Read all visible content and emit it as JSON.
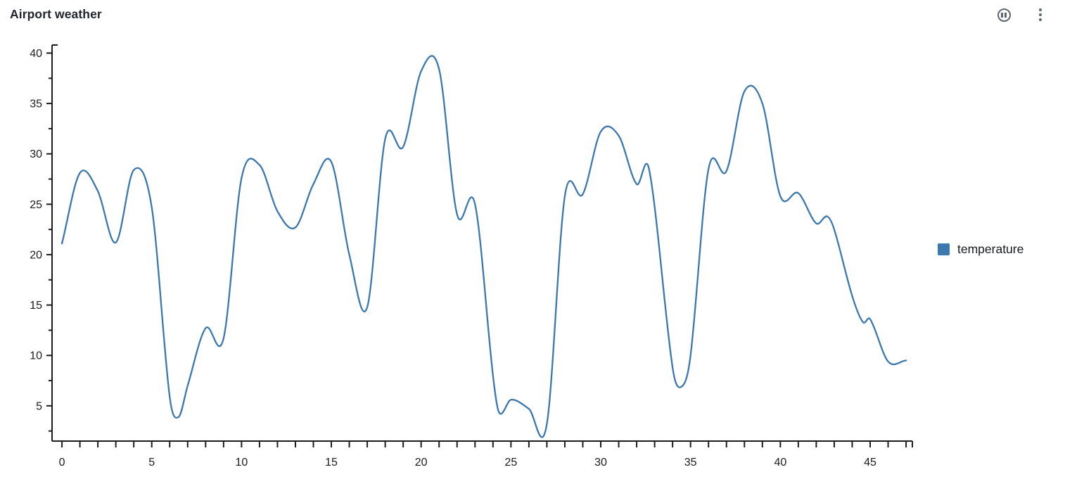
{
  "header": {
    "title": "Airport weather",
    "icon_color": "#5d6570",
    "icons": [
      {
        "name": "pause-circle-icon"
      },
      {
        "name": "kebab-menu-icon"
      }
    ]
  },
  "legend": {
    "items": [
      {
        "label": "temperature",
        "color": "#3d78ae"
      }
    ],
    "position": "right"
  },
  "chart_data": {
    "type": "line",
    "title": "Airport weather",
    "xlabel": "",
    "ylabel": "",
    "grid": false,
    "smooth": true,
    "legend_position": "right",
    "axis_color": "#1c1c1c",
    "label_color": "#1c1c1c",
    "xlim": [
      -0.55,
      47.35
    ],
    "ylim": [
      1.5,
      40.8
    ],
    "x_tick_interval": 1,
    "x_labeled_ticks": [
      0,
      5,
      10,
      15,
      20,
      25,
      30,
      35,
      40,
      45
    ],
    "y_tick_interval": 2.5,
    "y_labeled_ticks": [
      5,
      10,
      15,
      20,
      25,
      30,
      35,
      40
    ],
    "series": [
      {
        "name": "temperature",
        "color": "#3c78ae",
        "x": [
          0,
          1,
          2,
          3,
          4,
          5,
          6,
          6.5,
          7,
          8,
          9,
          10,
          11,
          12,
          13,
          14,
          15,
          16,
          17,
          18,
          19,
          20,
          21,
          22,
          23,
          24,
          24.35,
          25,
          26,
          27,
          28,
          29,
          30,
          31,
          32,
          32.7,
          34,
          34.5,
          35,
          36,
          37,
          38,
          39,
          40,
          41,
          42,
          42.6,
          43,
          44,
          44.6,
          45,
          46,
          47
        ],
        "values": [
          21.1,
          28.1,
          26.3,
          21.2,
          28.4,
          24.7,
          5.9,
          3.9,
          7.0,
          12.7,
          11.7,
          27.6,
          28.9,
          24.3,
          22.7,
          27.0,
          29.2,
          20.0,
          14.8,
          31.5,
          30.7,
          38.2,
          38.4,
          24.0,
          25.0,
          8.0,
          4.3,
          5.6,
          4.7,
          3.2,
          25.8,
          26.0,
          32.2,
          31.8,
          27.0,
          28.4,
          8.8,
          6.9,
          10.0,
          28.5,
          28.3,
          36.2,
          35.0,
          25.8,
          26.1,
          23.1,
          23.8,
          22.5,
          15.9,
          13.3,
          13.6,
          9.4,
          9.5
        ]
      }
    ]
  }
}
